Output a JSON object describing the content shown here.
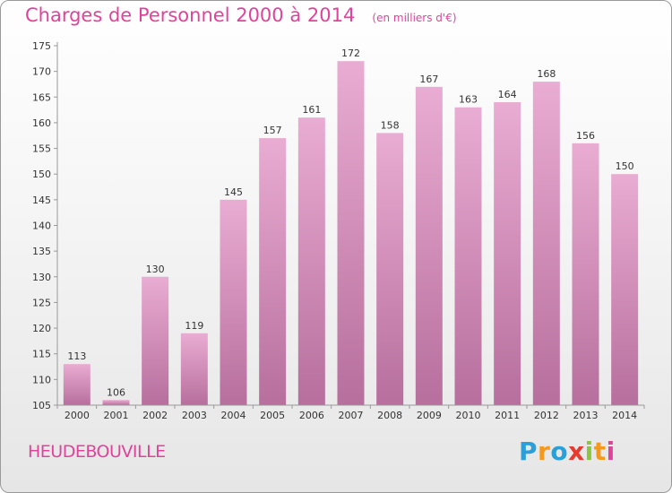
{
  "header": {
    "title": "Charges de Personnel 2000 à 2014",
    "subtitle": "(en milliers d'€)"
  },
  "footer": {
    "town": "HEUDEBOUVILLE",
    "logo_letters": [
      "P",
      "r",
      "o",
      "x",
      "i",
      "t",
      "i"
    ],
    "logo_colors": [
      "#2a9fd8",
      "#f39a1e",
      "#2a9fd8",
      "#e63a2e",
      "#8cc63f",
      "#f39a1e",
      "#e0439a"
    ]
  },
  "colors": {
    "accent": "#e0439a",
    "bar_top": "#e9acd2",
    "bar_bottom": "#b76f9d",
    "axis": "#999999",
    "label": "#333333"
  },
  "chart_data": {
    "type": "bar",
    "categories": [
      "2000",
      "2001",
      "2002",
      "2003",
      "2004",
      "2005",
      "2006",
      "2007",
      "2008",
      "2009",
      "2010",
      "2011",
      "2012",
      "2013",
      "2014"
    ],
    "values": [
      113,
      106,
      130,
      119,
      145,
      157,
      161,
      172,
      158,
      167,
      163,
      164,
      168,
      156,
      150
    ],
    "title": "Charges de Personnel 2000 à 2014",
    "subtitle": "(en milliers d'€)",
    "xlabel": "",
    "ylabel": "",
    "ylim": [
      105,
      175
    ],
    "yticks": [
      105,
      110,
      115,
      120,
      125,
      130,
      135,
      140,
      145,
      150,
      155,
      160,
      165,
      170,
      175
    ],
    "grid": false,
    "data_labels": true
  }
}
